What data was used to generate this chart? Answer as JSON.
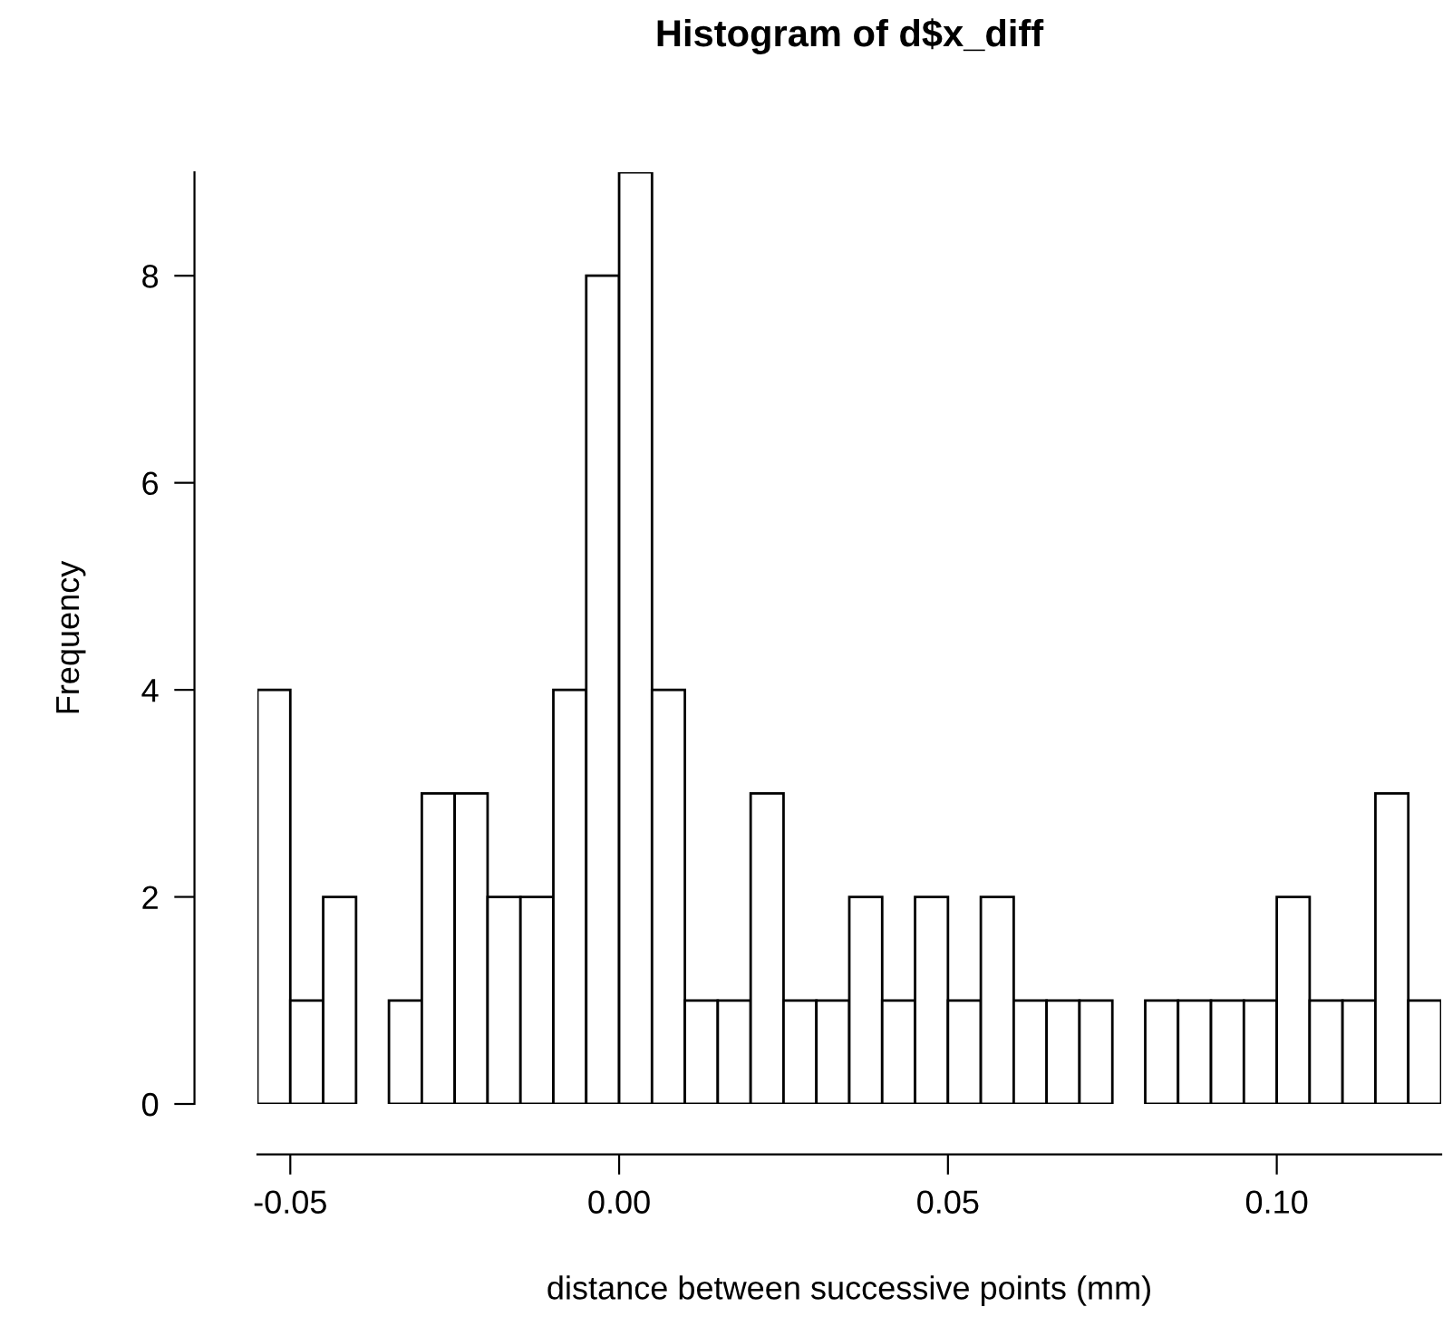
{
  "chart_data": {
    "type": "histogram",
    "title": "Histogram of d$x_diff",
    "xlabel": "distance between successive points (mm)",
    "ylabel": "Frequency",
    "bins": [
      -0.055,
      -0.05,
      -0.045,
      -0.04,
      -0.035,
      -0.03,
      -0.025,
      -0.02,
      -0.015,
      -0.01,
      -0.005,
      0.0,
      0.005,
      0.01,
      0.015,
      0.02,
      0.025,
      0.03,
      0.035,
      0.04,
      0.045,
      0.05,
      0.055,
      0.06,
      0.065,
      0.07,
      0.075,
      0.08,
      0.085,
      0.09,
      0.095,
      0.1,
      0.105,
      0.11,
      0.115,
      0.12,
      0.125
    ],
    "values": [
      4,
      1,
      2,
      0,
      1,
      3,
      3,
      2,
      2,
      4,
      8,
      9,
      4,
      1,
      1,
      3,
      1,
      1,
      2,
      1,
      2,
      1,
      2,
      1,
      1,
      1,
      0,
      1,
      1,
      1,
      1,
      2,
      1,
      1,
      3,
      1
    ],
    "color": "#ffffff",
    "xlim": [
      -0.055,
      0.125
    ],
    "xticks": [
      {
        "value": -0.05,
        "label": "-0.05"
      },
      {
        "value": 0.0,
        "label": "0.00"
      },
      {
        "value": 0.05,
        "label": "0.05"
      },
      {
        "value": 0.1,
        "label": "0.10"
      }
    ],
    "ylim": [
      0,
      9
    ],
    "yticks": [
      0,
      2,
      4,
      6,
      8
    ],
    "grid": false
  }
}
